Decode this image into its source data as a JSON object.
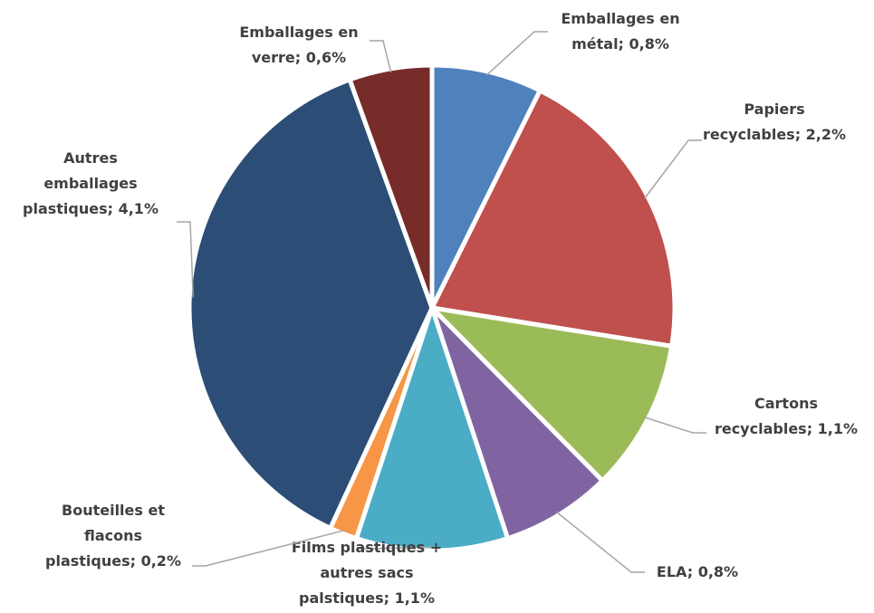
{
  "chart_data": {
    "type": "pie",
    "values": [
      0.8,
      2.2,
      1.1,
      0.8,
      1.1,
      0.2,
      4.1,
      0.6
    ],
    "value_labels": [
      "Emballages en métal; 0,8%",
      "Papiers recyclables; 2,2%",
      "Cartons recyclables; 1,1%",
      "ELA; 0,8%",
      "Films plastiques + autres sacs palstiques; 1,1%",
      "Bouteilles et flacons plastiques; 0,2%",
      "Autres emballages plastiques; 4,1%",
      "Emballages en verre; 0,6%"
    ],
    "colors": [
      "#4f81bd",
      "#c0504d",
      "#9bbb59",
      "#8064a2",
      "#4bacc6",
      "#f79646",
      "#2c4d75",
      "#772c2a"
    ]
  }
}
